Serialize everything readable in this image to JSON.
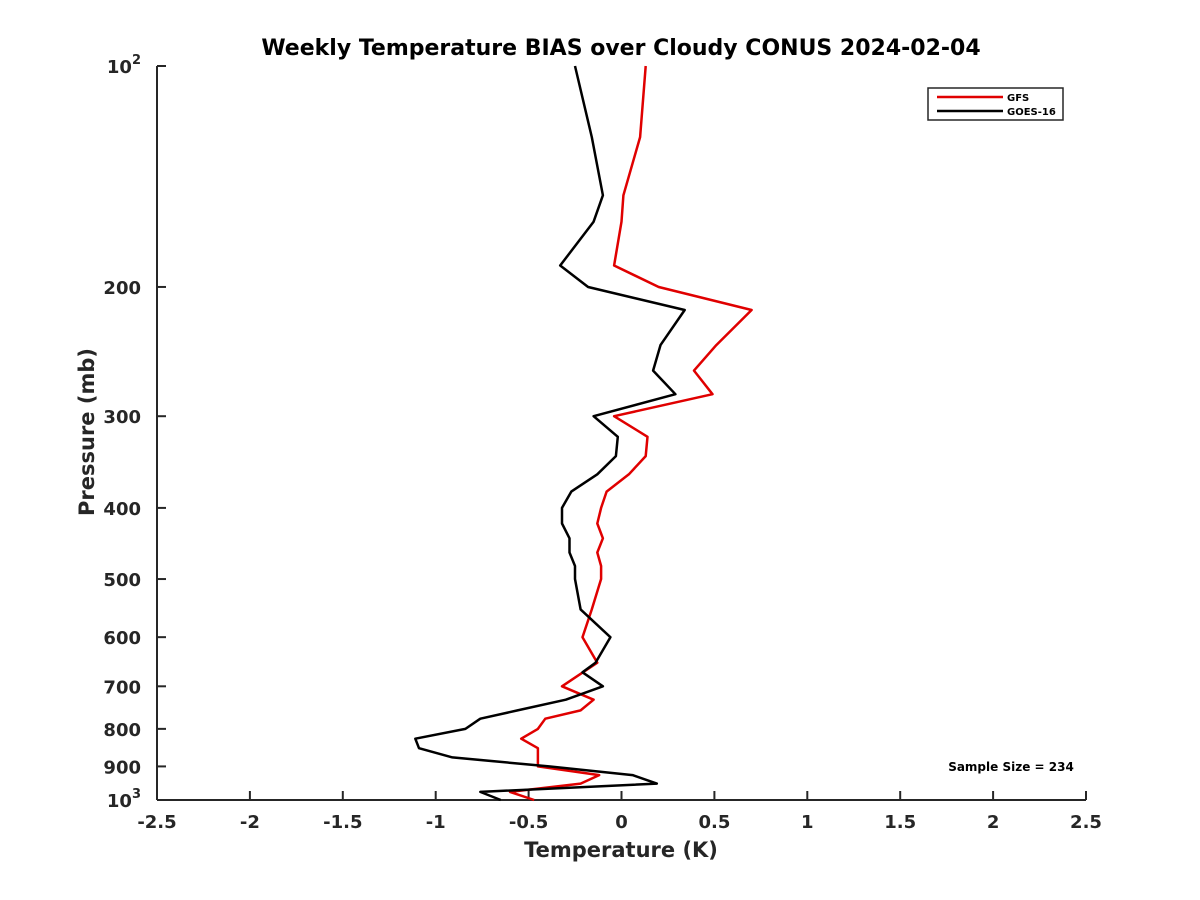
{
  "chart_data": {
    "type": "line",
    "title": "Weekly Temperature BIAS over Cloudy CONUS 2024-02-04",
    "xlabel": "Temperature (K)",
    "ylabel": "Pressure (mb)",
    "xlim": [
      -2.5,
      2.5
    ],
    "ylim": [
      100,
      1000
    ],
    "y_scale": "log",
    "y_reversed": true,
    "x_ticks": [
      -2.5,
      -2,
      -1.5,
      -1,
      -0.5,
      0,
      0.5,
      1,
      1.5,
      2,
      2.5
    ],
    "x_tick_labels": [
      "-2.5",
      "-2",
      "-1.5",
      "-1",
      "-0.5",
      "0",
      "0.5",
      "1",
      "1.5",
      "2",
      "2.5"
    ],
    "y_ticks": [
      {
        "value": 100,
        "label": "10",
        "sup": "2"
      },
      {
        "value": 200,
        "label": "200",
        "sup": ""
      },
      {
        "value": 300,
        "label": "300",
        "sup": ""
      },
      {
        "value": 400,
        "label": "400",
        "sup": ""
      },
      {
        "value": 500,
        "label": "500",
        "sup": ""
      },
      {
        "value": 600,
        "label": "600",
        "sup": ""
      },
      {
        "value": 700,
        "label": "700",
        "sup": ""
      },
      {
        "value": 800,
        "label": "800",
        "sup": ""
      },
      {
        "value": 900,
        "label": "900",
        "sup": ""
      },
      {
        "value": 1000,
        "label": "10",
        "sup": "3"
      }
    ],
    "grid": false,
    "legend_position": "top-right",
    "series": [
      {
        "name": "GFS",
        "color": "#e00000",
        "points": [
          {
            "x": 0.13,
            "y": 100
          },
          {
            "x": 0.1,
            "y": 125
          },
          {
            "x": 0.01,
            "y": 150
          },
          {
            "x": 0.0,
            "y": 163
          },
          {
            "x": -0.04,
            "y": 187
          },
          {
            "x": 0.2,
            "y": 200
          },
          {
            "x": 0.7,
            "y": 215
          },
          {
            "x": 0.51,
            "y": 240
          },
          {
            "x": 0.39,
            "y": 260
          },
          {
            "x": 0.49,
            "y": 280
          },
          {
            "x": -0.04,
            "y": 300
          },
          {
            "x": 0.14,
            "y": 320
          },
          {
            "x": 0.13,
            "y": 340
          },
          {
            "x": 0.04,
            "y": 360
          },
          {
            "x": -0.08,
            "y": 380
          },
          {
            "x": -0.11,
            "y": 400
          },
          {
            "x": -0.13,
            "y": 420
          },
          {
            "x": -0.1,
            "y": 440
          },
          {
            "x": -0.13,
            "y": 460
          },
          {
            "x": -0.11,
            "y": 480
          },
          {
            "x": -0.11,
            "y": 500
          },
          {
            "x": -0.16,
            "y": 550
          },
          {
            "x": -0.21,
            "y": 600
          },
          {
            "x": -0.13,
            "y": 650
          },
          {
            "x": -0.32,
            "y": 700
          },
          {
            "x": -0.15,
            "y": 730
          },
          {
            "x": -0.22,
            "y": 755
          },
          {
            "x": -0.41,
            "y": 775
          },
          {
            "x": -0.45,
            "y": 800
          },
          {
            "x": -0.54,
            "y": 825
          },
          {
            "x": -0.45,
            "y": 850
          },
          {
            "x": -0.45,
            "y": 900
          },
          {
            "x": -0.12,
            "y": 925
          },
          {
            "x": -0.22,
            "y": 950
          },
          {
            "x": -0.6,
            "y": 975
          },
          {
            "x": -0.47,
            "y": 1000
          }
        ]
      },
      {
        "name": "GOES-16",
        "color": "#000000",
        "points": [
          {
            "x": -0.25,
            "y": 100
          },
          {
            "x": -0.16,
            "y": 125
          },
          {
            "x": -0.1,
            "y": 150
          },
          {
            "x": -0.15,
            "y": 163
          },
          {
            "x": -0.33,
            "y": 187
          },
          {
            "x": -0.18,
            "y": 200
          },
          {
            "x": 0.34,
            "y": 215
          },
          {
            "x": 0.21,
            "y": 240
          },
          {
            "x": 0.17,
            "y": 260
          },
          {
            "x": 0.29,
            "y": 280
          },
          {
            "x": -0.15,
            "y": 300
          },
          {
            "x": -0.02,
            "y": 320
          },
          {
            "x": -0.03,
            "y": 340
          },
          {
            "x": -0.13,
            "y": 360
          },
          {
            "x": -0.27,
            "y": 380
          },
          {
            "x": -0.32,
            "y": 400
          },
          {
            "x": -0.32,
            "y": 420
          },
          {
            "x": -0.28,
            "y": 440
          },
          {
            "x": -0.28,
            "y": 460
          },
          {
            "x": -0.25,
            "y": 480
          },
          {
            "x": -0.25,
            "y": 500
          },
          {
            "x": -0.22,
            "y": 550
          },
          {
            "x": -0.06,
            "y": 600
          },
          {
            "x": -0.14,
            "y": 650
          },
          {
            "x": -0.21,
            "y": 670
          },
          {
            "x": -0.1,
            "y": 700
          },
          {
            "x": -0.3,
            "y": 730
          },
          {
            "x": -0.56,
            "y": 755
          },
          {
            "x": -0.76,
            "y": 775
          },
          {
            "x": -0.84,
            "y": 800
          },
          {
            "x": -1.11,
            "y": 825
          },
          {
            "x": -1.09,
            "y": 850
          },
          {
            "x": -0.91,
            "y": 875
          },
          {
            "x": -0.39,
            "y": 900
          },
          {
            "x": 0.06,
            "y": 925
          },
          {
            "x": 0.19,
            "y": 950
          },
          {
            "x": -0.76,
            "y": 975
          },
          {
            "x": -0.65,
            "y": 1000
          }
        ]
      }
    ],
    "annotations": [
      {
        "text": "Sample Size = 234",
        "position": "bottom-right"
      }
    ]
  }
}
